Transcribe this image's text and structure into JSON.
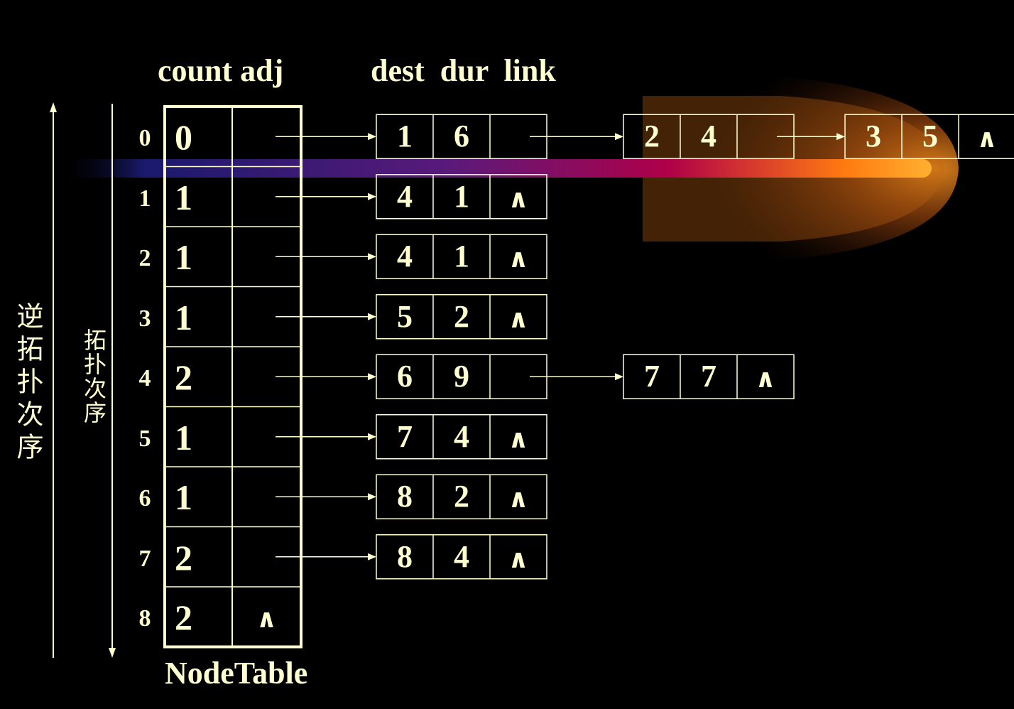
{
  "headers": {
    "count_adj": "count adj",
    "dest_dur_link": "dest  dur  link",
    "table_caption": "NodeTable"
  },
  "side_labels": {
    "reverse_topo": "逆拓扑次序",
    "topo": "拓扑次序"
  },
  "null_symbol": "∧",
  "node_table": [
    {
      "index": "0",
      "count": "0",
      "adj_null": false
    },
    {
      "index": "1",
      "count": "1",
      "adj_null": false
    },
    {
      "index": "2",
      "count": "1",
      "adj_null": false
    },
    {
      "index": "3",
      "count": "1",
      "adj_null": false
    },
    {
      "index": "4",
      "count": "2",
      "adj_null": false
    },
    {
      "index": "5",
      "count": "1",
      "adj_null": false
    },
    {
      "index": "6",
      "count": "1",
      "adj_null": false
    },
    {
      "index": "7",
      "count": "2",
      "adj_null": false
    },
    {
      "index": "8",
      "count": "2",
      "adj_null": true
    }
  ],
  "edge_lists": [
    [
      {
        "dest": "1",
        "dur": "6"
      },
      {
        "dest": "2",
        "dur": "4"
      },
      {
        "dest": "3",
        "dur": "5"
      }
    ],
    [
      {
        "dest": "4",
        "dur": "1"
      }
    ],
    [
      {
        "dest": "4",
        "dur": "1"
      }
    ],
    [
      {
        "dest": "5",
        "dur": "2"
      }
    ],
    [
      {
        "dest": "6",
        "dur": "9"
      },
      {
        "dest": "7",
        "dur": "7"
      }
    ],
    [
      {
        "dest": "7",
        "dur": "4"
      }
    ],
    [
      {
        "dest": "8",
        "dur": "2"
      }
    ],
    [
      {
        "dest": "8",
        "dur": "4"
      }
    ],
    []
  ],
  "colors": {
    "foreground": "#ffffd0",
    "background": "#000000",
    "beam_start": "#1a1a6e",
    "beam_mid": "#a0004a",
    "beam_end": "#ffb030"
  }
}
